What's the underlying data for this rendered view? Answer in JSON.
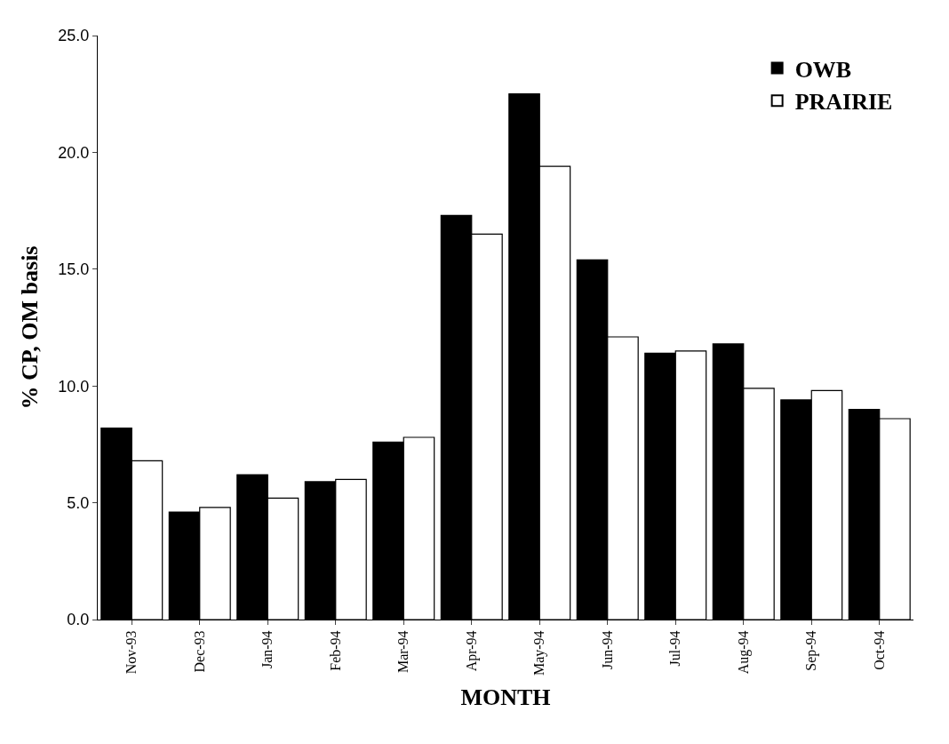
{
  "chart_data": {
    "type": "bar",
    "xlabel": "MONTH",
    "ylabel": "% CP, OM basis",
    "categories": [
      "Nov-93",
      "Dec-93",
      "Jan-94",
      "Feb-94",
      "Mar-94",
      "Apr-94",
      "May-94",
      "Jun-94",
      "Jul-94",
      "Aug-94",
      "Sep-94",
      "Oct-94"
    ],
    "series": [
      {
        "name": "OWB",
        "color": "#000000",
        "values": [
          8.2,
          4.6,
          6.2,
          5.9,
          7.6,
          17.3,
          22.5,
          15.4,
          11.4,
          11.8,
          9.4,
          9.0
        ]
      },
      {
        "name": "PRAIRIE",
        "color": "#ffffff",
        "values": [
          6.8,
          4.8,
          5.2,
          6.0,
          7.8,
          16.5,
          19.4,
          12.1,
          11.5,
          9.9,
          9.8,
          8.6
        ]
      }
    ],
    "ylim": [
      0,
      25
    ],
    "yticks": [
      {
        "value": 0,
        "label": "0.0"
      },
      {
        "value": 5,
        "label": "5.0"
      },
      {
        "value": 10,
        "label": "10.0"
      },
      {
        "value": 15,
        "label": "15.0"
      },
      {
        "value": 20,
        "label": "20.0"
      },
      {
        "value": 25,
        "label": "25.0"
      }
    ],
    "legend": "top right"
  }
}
